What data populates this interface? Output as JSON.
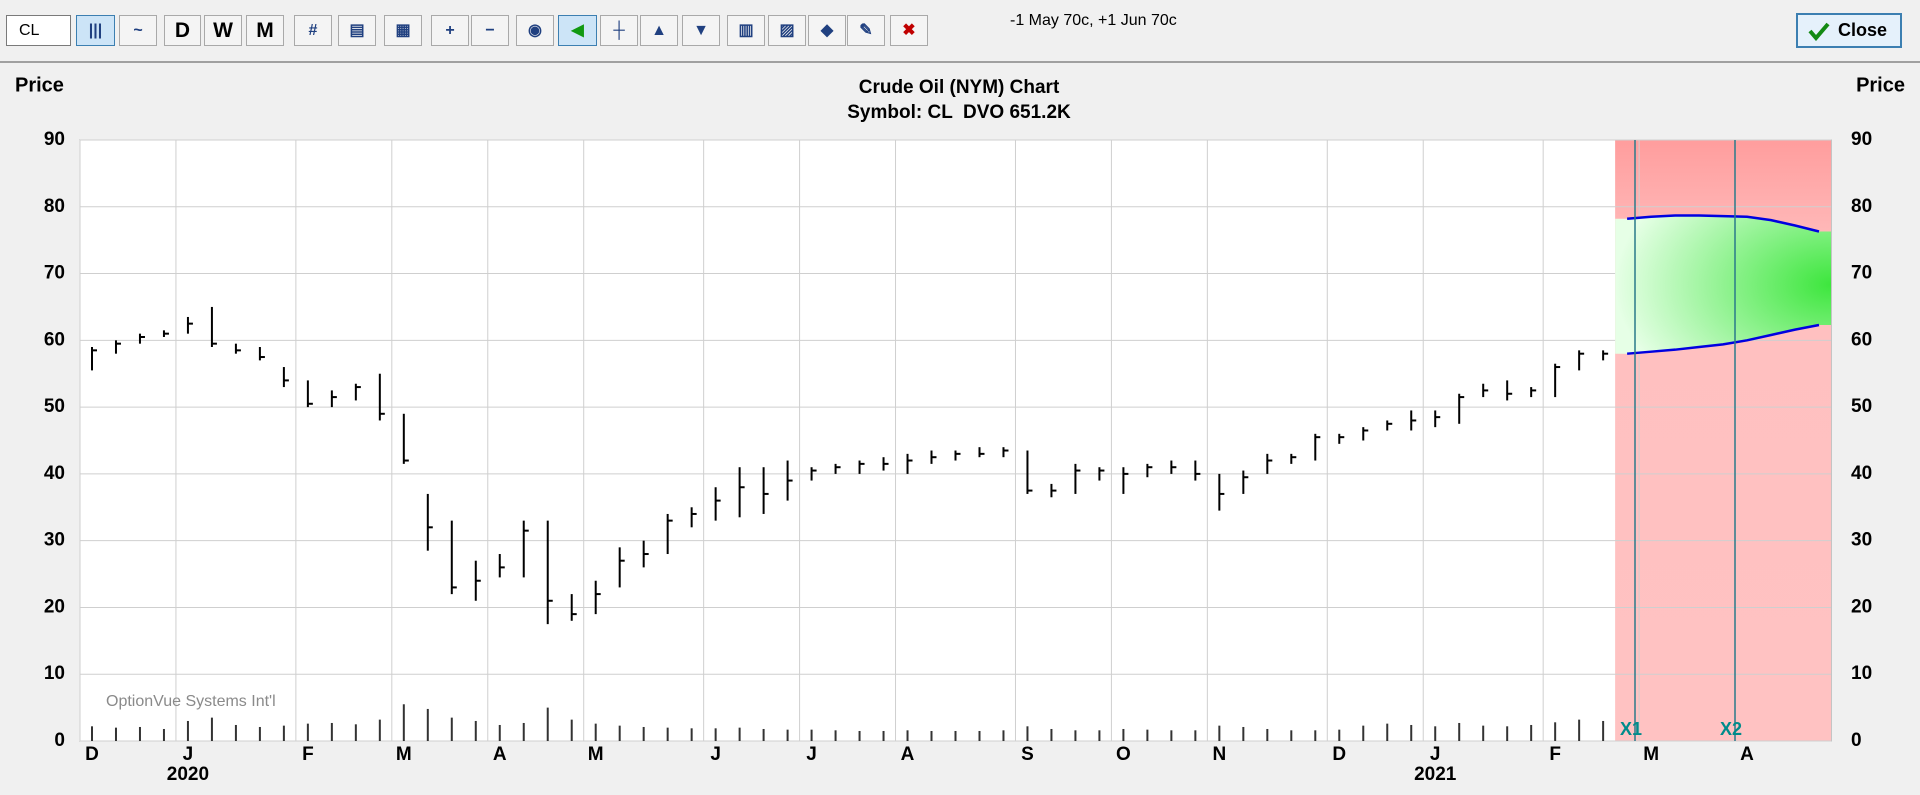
{
  "toolbar": {
    "symbol": "CL",
    "buttons": [
      "D",
      "W",
      "M"
    ],
    "note": "-1 May 70c, +1 Jun 70c",
    "close": "Close"
  },
  "chart_data": {
    "type": "ohlc",
    "title": "Crude Oil (NYM) Chart",
    "subtitle": "Symbol: CL  DVO 651.2K",
    "y_label": "Price",
    "watermark": "OptionVue Systems Int'l",
    "year_labels": [
      "2020",
      "2021"
    ],
    "markers": [
      "X1",
      "X2"
    ],
    "categories": [
      "D",
      null,
      null,
      null,
      "J",
      null,
      null,
      null,
      null,
      "F",
      null,
      null,
      null,
      "M",
      null,
      null,
      null,
      "A",
      null,
      null,
      null,
      "M",
      null,
      null,
      null,
      null,
      "J",
      null,
      null,
      null,
      "J",
      null,
      null,
      null,
      "A",
      null,
      null,
      null,
      null,
      "S",
      null,
      null,
      null,
      "O",
      null,
      null,
      null,
      "N",
      null,
      null,
      null,
      null,
      "D",
      null,
      null,
      null,
      "J",
      null,
      null,
      null,
      null,
      "F",
      null,
      null,
      null,
      "M",
      null,
      null,
      null,
      "A",
      null,
      null,
      null
    ],
    "high": [
      59,
      60,
      61,
      61.5,
      63.5,
      65,
      59.5,
      59,
      56,
      54,
      52.5,
      53.5,
      55,
      49,
      37,
      33,
      27,
      28,
      33,
      33,
      22,
      24,
      29,
      30,
      34,
      35,
      38,
      41,
      41,
      42,
      41,
      41.5,
      42,
      42.5,
      43,
      43.5,
      43.5,
      44,
      44,
      43.5,
      38.5,
      41.5,
      41,
      41,
      41.5,
      42,
      42,
      40,
      40.5,
      43,
      43,
      46,
      46,
      47,
      48,
      49.5,
      49.5,
      52,
      53.5,
      54,
      53,
      56.5,
      58.5,
      58.5,
      null,
      null,
      null,
      null,
      null,
      null,
      null,
      null,
      null
    ],
    "low": [
      55.5,
      58,
      59.5,
      60.5,
      61,
      59,
      58,
      57,
      53,
      50,
      50,
      51,
      48,
      41.5,
      28.5,
      22,
      21,
      24.5,
      24.5,
      17.5,
      18,
      19,
      23,
      26,
      28,
      32,
      33,
      33.5,
      34,
      36,
      39,
      40,
      40,
      40.5,
      40,
      41.5,
      42,
      42.5,
      42.5,
      37,
      36.5,
      37,
      39,
      37,
      39.5,
      40,
      39,
      34.5,
      37,
      40,
      41.5,
      42,
      44.5,
      45,
      46.5,
      46.5,
      47,
      47.5,
      51.5,
      51,
      51.5,
      51.5,
      55.5,
      57,
      null,
      null,
      null,
      null,
      null,
      null,
      null,
      null,
      null
    ],
    "close": [
      58.5,
      59.5,
      60.5,
      61,
      62.5,
      59.5,
      58.5,
      57.5,
      54,
      50.5,
      51.5,
      53,
      49,
      42,
      32,
      23,
      24,
      26,
      31.5,
      21,
      19,
      22,
      27,
      28,
      33,
      34,
      36,
      38,
      37,
      39,
      40.5,
      41,
      41.5,
      41.5,
      42,
      42.5,
      43,
      43,
      43.5,
      37.5,
      37.5,
      40.5,
      40.5,
      40,
      41,
      41,
      40,
      37,
      39.5,
      42,
      42.5,
      45.5,
      45.5,
      46.5,
      47.5,
      48,
      48.5,
      51.5,
      52.5,
      52,
      52.5,
      56,
      58,
      58,
      null,
      null,
      null,
      null,
      null,
      null,
      null,
      null,
      null
    ],
    "volume": [
      2.2,
      2,
      2.1,
      1.8,
      3,
      3.5,
      2.4,
      2.1,
      2.3,
      2.6,
      2.7,
      2.5,
      3.2,
      5.5,
      4.8,
      3.5,
      3,
      2.4,
      2.7,
      5,
      3.2,
      2.6,
      2.3,
      2.1,
      2,
      1.9,
      1.9,
      2,
      1.8,
      1.7,
      1.7,
      1.6,
      1.5,
      1.5,
      1.6,
      1.5,
      1.5,
      1.5,
      1.6,
      2.2,
      1.8,
      1.6,
      1.6,
      1.8,
      1.7,
      1.6,
      1.6,
      2.3,
      2.1,
      1.8,
      1.6,
      1.6,
      1.7,
      2.3,
      2.6,
      2.4,
      2.2,
      2.7,
      2.3,
      2.2,
      2.4,
      2.8,
      3.2,
      3,
      null,
      null,
      null,
      null,
      null,
      null,
      null,
      null,
      null
    ],
    "projection": {
      "color": "#0000e0",
      "upper": [
        null,
        null,
        null,
        null,
        null,
        null,
        null,
        null,
        null,
        null,
        null,
        null,
        null,
        null,
        null,
        null,
        null,
        null,
        null,
        null,
        null,
        null,
        null,
        null,
        null,
        null,
        null,
        null,
        null,
        null,
        null,
        null,
        null,
        null,
        null,
        null,
        null,
        null,
        null,
        null,
        null,
        null,
        null,
        null,
        null,
        null,
        null,
        null,
        null,
        null,
        null,
        null,
        null,
        null,
        null,
        null,
        null,
        null,
        null,
        null,
        null,
        null,
        null,
        null,
        78.2,
        78.5,
        78.7,
        78.7,
        78.6,
        78.5,
        78,
        77.2,
        76.3
      ],
      "lower": [
        null,
        null,
        null,
        null,
        null,
        null,
        null,
        null,
        null,
        null,
        null,
        null,
        null,
        null,
        null,
        null,
        null,
        null,
        null,
        null,
        null,
        null,
        null,
        null,
        null,
        null,
        null,
        null,
        null,
        null,
        null,
        null,
        null,
        null,
        null,
        null,
        null,
        null,
        null,
        null,
        null,
        null,
        null,
        null,
        null,
        null,
        null,
        null,
        null,
        null,
        null,
        null,
        null,
        null,
        null,
        null,
        null,
        null,
        null,
        null,
        null,
        null,
        null,
        null,
        58,
        58.3,
        58.6,
        59,
        59.4,
        60,
        60.8,
        61.6,
        62.3
      ]
    },
    "color": "#000000",
    "ylim": [
      0,
      90
    ],
    "yticks": [
      0,
      10,
      20,
      30,
      40,
      50,
      60,
      70,
      80,
      90
    ],
    "grid": true
  }
}
